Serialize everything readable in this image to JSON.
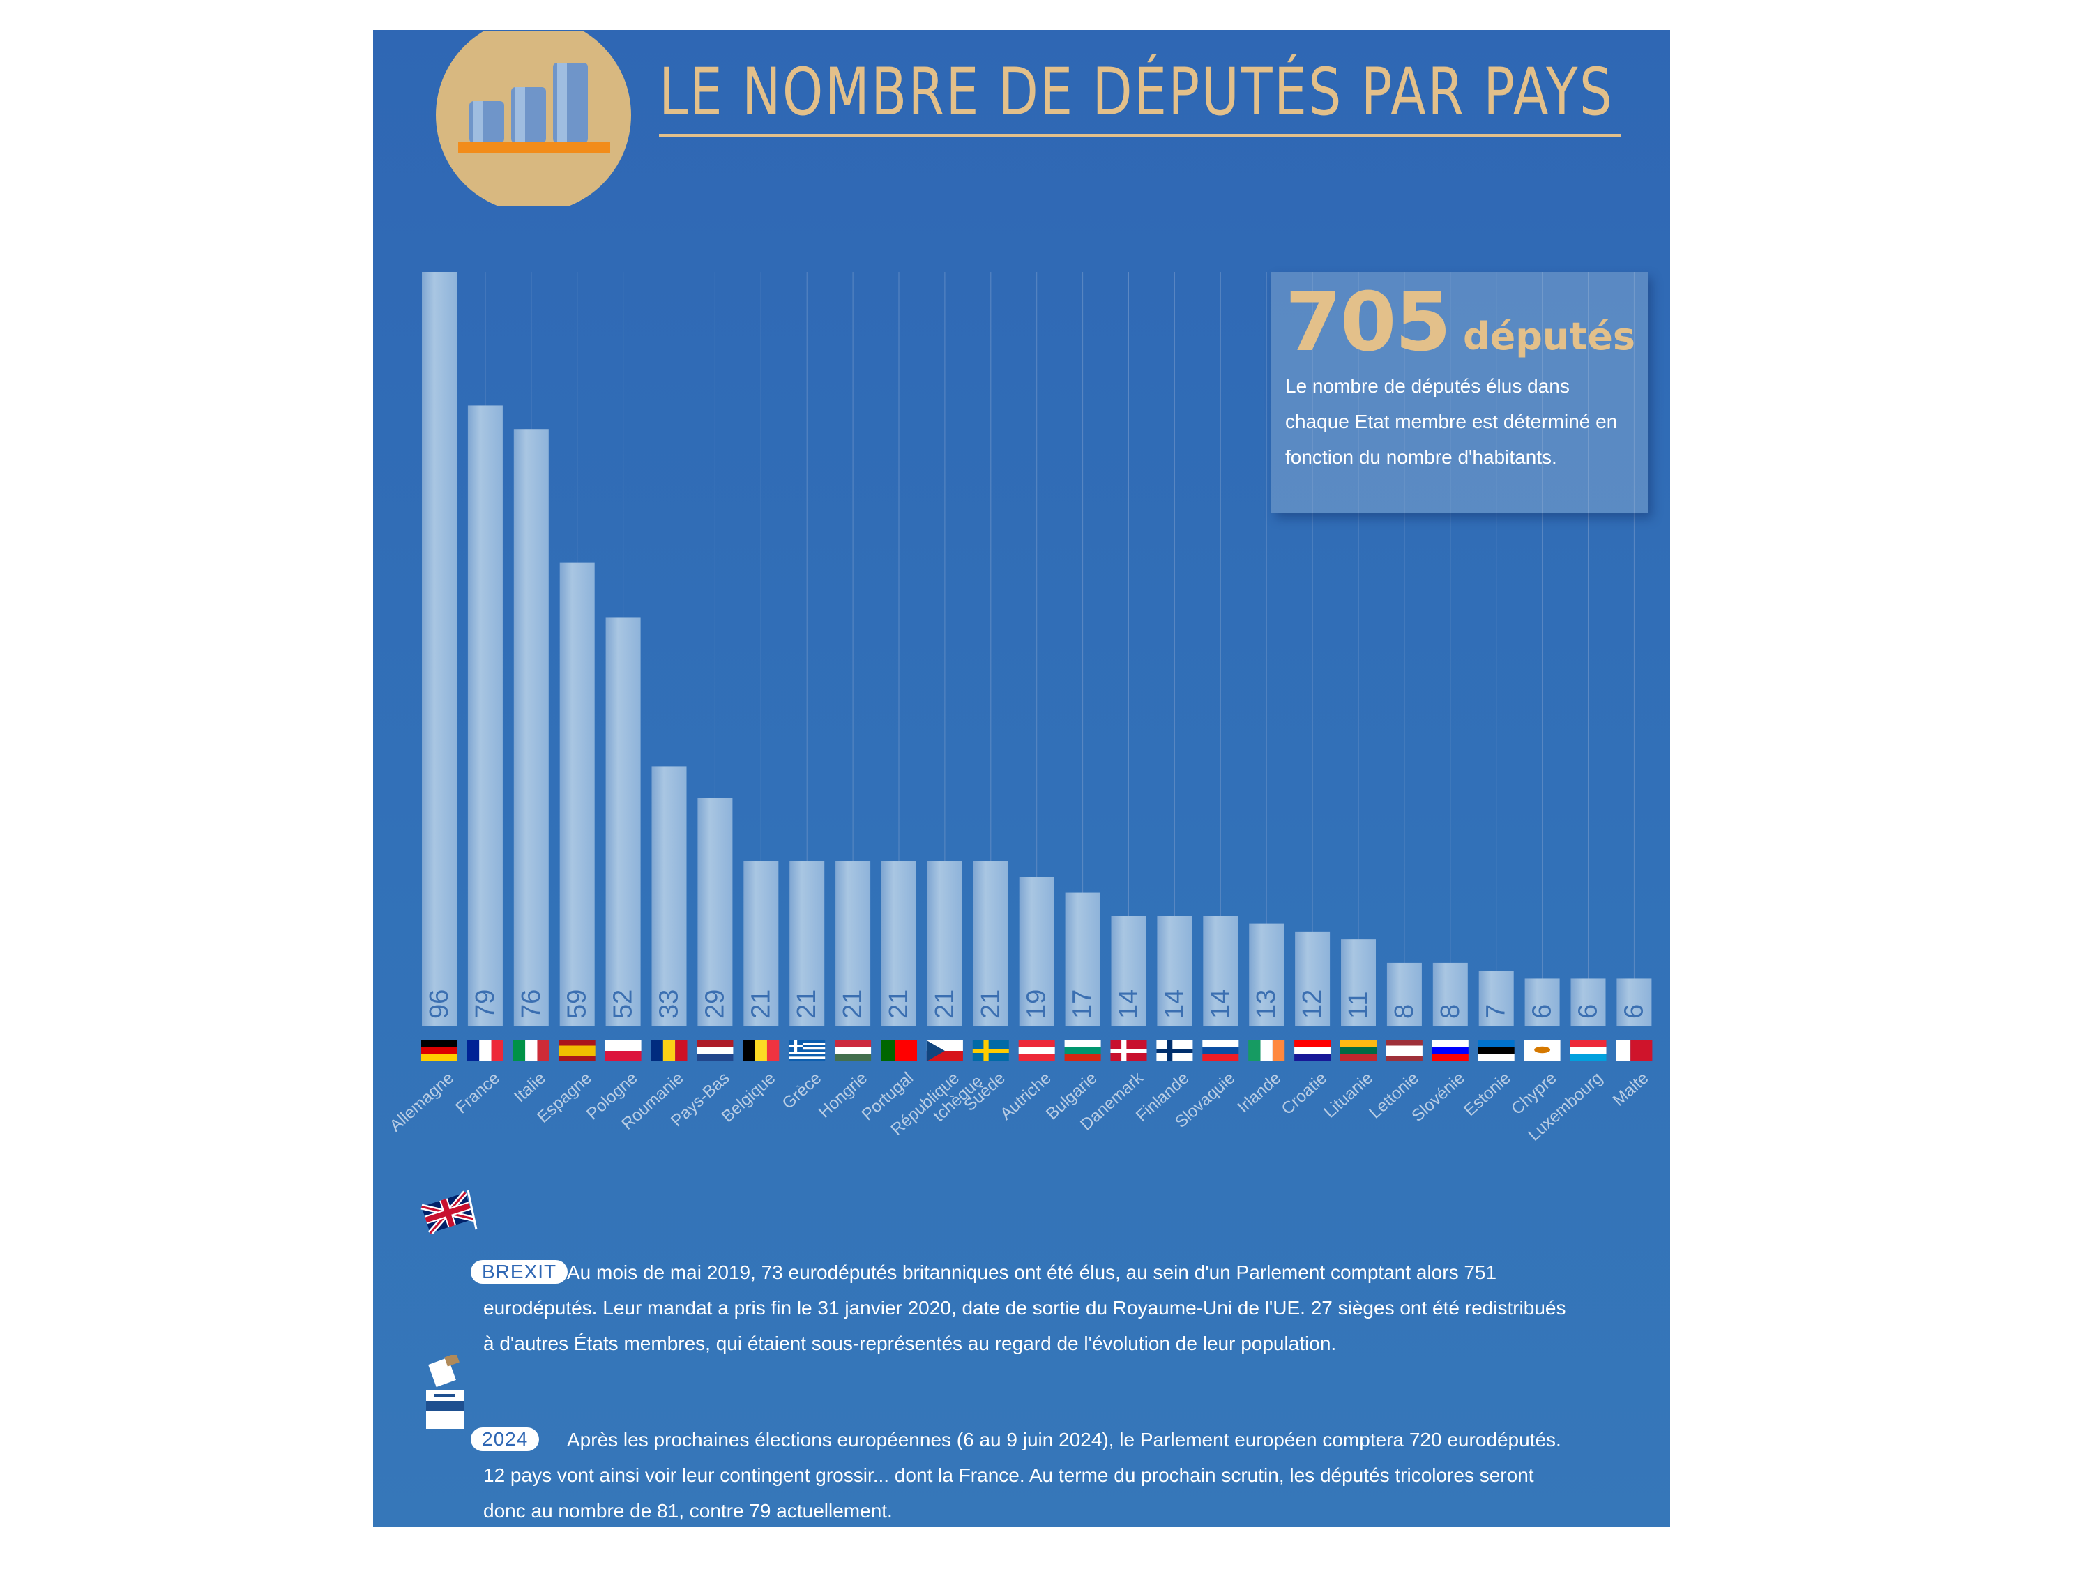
{
  "title": "LE NOMBRE DE DÉPUTÉS PAR PAYS",
  "info_box": {
    "number": "705",
    "unit": "députés",
    "text": "Le nombre de députés élus dans chaque Etat membre est déterminé en fonction du nombre d'habitants."
  },
  "notes": [
    {
      "tag": "BREXIT",
      "icon": "uk-flag-icon",
      "text": "Au mois de mai 2019, 73 eurodéputés britanniques ont été élus, au sein d'un Parlement comptant alors 751 eurodéputés. Leur mandat a pris fin le 31 janvier 2020, date de sortie du Royaume-Uni de l'UE. 27 sièges ont été redistribués à d'autres États membres, qui étaient sous-représentés au regard de l'évolution de leur population."
    },
    {
      "tag": "2024",
      "icon": "ballot-box-icon",
      "text": "Après les prochaines élections européennes (6 au 9 juin 2024), le Parlement européen comptera 720 eurodéputés. 12 pays vont ainsi voir leur contingent grossir... dont la France. Au terme du prochain scrutin, les députés tricolores seront donc au nombre de 81, contre 79 actuellement."
    }
  ],
  "colors": {
    "background": "#2f67b4",
    "accent": "#e3c08a",
    "bar": "#a9c6e2",
    "bar_value_text": "#3b6fb1",
    "country_label": "#b9cde4"
  },
  "chart_data": {
    "type": "bar",
    "title": "LE NOMBRE DE DÉPUTÉS PAR PAYS",
    "xlabel": "",
    "ylabel": "",
    "ylim": [
      0,
      96
    ],
    "grid": true,
    "categories": [
      "Allemagne",
      "France",
      "Italie",
      "Espagne",
      "Pologne",
      "Roumanie",
      "Pays-Bas",
      "Belgique",
      "Grèce",
      "Hongrie",
      "Portugal",
      "République tchèque",
      "Suède",
      "Autriche",
      "Bulgarie",
      "Danemark",
      "Finlande",
      "Slovaquie",
      "Irlande",
      "Croatie",
      "Lituanie",
      "Lettonie",
      "Slovénie",
      "Estonie",
      "Chypre",
      "Luxembourg",
      "Malte"
    ],
    "values": [
      96,
      79,
      76,
      59,
      52,
      33,
      29,
      21,
      21,
      21,
      21,
      21,
      21,
      19,
      17,
      14,
      14,
      14,
      13,
      12,
      11,
      8,
      8,
      7,
      6,
      6,
      6
    ],
    "flags": [
      {
        "type": "h",
        "colors": [
          "#000000",
          "#dd0000",
          "#ffce00"
        ]
      },
      {
        "type": "v",
        "colors": [
          "#002395",
          "#ffffff",
          "#ed2939"
        ]
      },
      {
        "type": "v",
        "colors": [
          "#009246",
          "#ffffff",
          "#ce2b37"
        ]
      },
      {
        "type": "h3",
        "colors": [
          "#aa151b",
          "#f1bf00",
          "#aa151b"
        ]
      },
      {
        "type": "h",
        "colors": [
          "#ffffff",
          "#dc143c"
        ]
      },
      {
        "type": "v",
        "colors": [
          "#002b7f",
          "#fcd116",
          "#ce1126"
        ]
      },
      {
        "type": "h",
        "colors": [
          "#ae1c28",
          "#ffffff",
          "#21468b"
        ]
      },
      {
        "type": "v",
        "colors": [
          "#000000",
          "#fdda24",
          "#ef3340"
        ]
      },
      {
        "type": "stripes",
        "colors": [
          "#0d5eaf",
          "#ffffff"
        ]
      },
      {
        "type": "h",
        "colors": [
          "#cd2a3e",
          "#ffffff",
          "#436f4d"
        ]
      },
      {
        "type": "v2",
        "colors": [
          "#006600",
          "#ff0000"
        ]
      },
      {
        "type": "cz",
        "colors": [
          "#ffffff",
          "#d7141a",
          "#11457e"
        ]
      },
      {
        "type": "nordic",
        "colors": [
          "#006aa7",
          "#fecc00"
        ]
      },
      {
        "type": "h",
        "colors": [
          "#ed2939",
          "#ffffff",
          "#ed2939"
        ]
      },
      {
        "type": "h",
        "colors": [
          "#ffffff",
          "#00966e",
          "#d62612"
        ]
      },
      {
        "type": "nordic",
        "colors": [
          "#c8102e",
          "#ffffff"
        ]
      },
      {
        "type": "nordic",
        "colors": [
          "#ffffff",
          "#002f6c"
        ]
      },
      {
        "type": "h",
        "colors": [
          "#ffffff",
          "#0b4ea2",
          "#ee1c25"
        ]
      },
      {
        "type": "v",
        "colors": [
          "#169b62",
          "#ffffff",
          "#ff883e"
        ]
      },
      {
        "type": "h",
        "colors": [
          "#ff0000",
          "#ffffff",
          "#171796"
        ]
      },
      {
        "type": "h",
        "colors": [
          "#fdb913",
          "#006a44",
          "#c1272d"
        ]
      },
      {
        "type": "h3",
        "colors": [
          "#9e3039",
          "#ffffff",
          "#9e3039"
        ]
      },
      {
        "type": "h",
        "colors": [
          "#ffffff",
          "#0000ff",
          "#ff0000"
        ]
      },
      {
        "type": "h",
        "colors": [
          "#0072ce",
          "#000000",
          "#ffffff"
        ]
      },
      {
        "type": "solid",
        "colors": [
          "#ffffff",
          "#d57800"
        ]
      },
      {
        "type": "h",
        "colors": [
          "#ed2939",
          "#ffffff",
          "#00a1de"
        ]
      },
      {
        "type": "v2",
        "colors": [
          "#ffffff",
          "#cf142b"
        ]
      }
    ]
  }
}
